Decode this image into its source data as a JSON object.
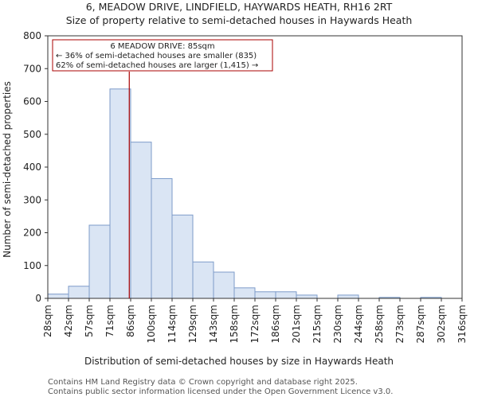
{
  "chart_data": {
    "type": "bar",
    "title_lines": [
      "6, MEADOW DRIVE, LINDFIELD, HAYWARDS HEATH, RH16 2RT",
      "Size of property relative to semi-detached houses in Haywards Heath"
    ],
    "xlabel": "Distribution of semi-detached houses by size in Haywards Heath",
    "ylabel": "Number of semi-detached properties",
    "ylim": [
      0,
      800
    ],
    "yticks": [
      0,
      100,
      200,
      300,
      400,
      500,
      600,
      700,
      800
    ],
    "bin_edge_labels": [
      "28sqm",
      "42sqm",
      "57sqm",
      "71sqm",
      "86sqm",
      "100sqm",
      "114sqm",
      "129sqm",
      "143sqm",
      "158sqm",
      "172sqm",
      "186sqm",
      "201sqm",
      "215sqm",
      "230sqm",
      "244sqm",
      "258sqm",
      "273sqm",
      "287sqm",
      "302sqm",
      "316sqm"
    ],
    "values": [
      13,
      37,
      223,
      638,
      476,
      365,
      254,
      111,
      80,
      32,
      20,
      20,
      10,
      0,
      10,
      0,
      3,
      0,
      3,
      0
    ],
    "bar_fill": "#dae5f4",
    "bar_stroke": "#7d9bc9",
    "marker": {
      "value_sqm": 85,
      "color": "#aa0000",
      "annotation_lines": [
        "6 MEADOW DRIVE: 85sqm",
        "← 36% of semi-detached houses are smaller (835)",
        "62% of semi-detached houses are larger (1,415) →"
      ]
    }
  },
  "footer": {
    "line1": "Contains HM Land Registry data © Crown copyright and database right 2025.",
    "line2": "Contains public sector information licensed under the Open Government Licence v3.0."
  }
}
